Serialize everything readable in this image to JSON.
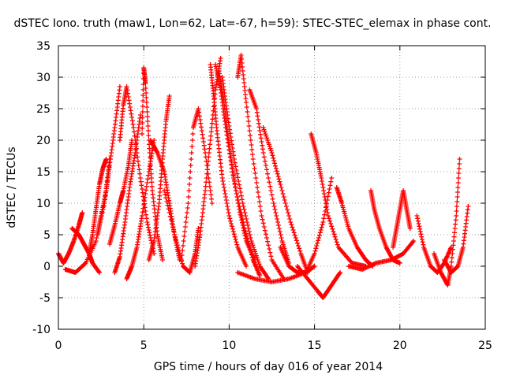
{
  "chart_data": {
    "type": "scatter",
    "title": "dSTEC Iono. truth (maw1, Lon=62, Lat=-67, h=59): STEC-STEC_elemax in phase cont.",
    "xlabel": "GPS time / hours of day 016 of year 2014",
    "ylabel": "dSTEC  / TECUs",
    "xlim": [
      0,
      25
    ],
    "ylim": [
      -10,
      35
    ],
    "xticks": [
      0,
      5,
      10,
      15,
      20,
      25
    ],
    "yticks": [
      -10,
      -5,
      0,
      5,
      10,
      15,
      20,
      25,
      30,
      35
    ],
    "grid": true,
    "marker": "+",
    "color": "#ff0000",
    "series": [
      {
        "x": [
          0.0,
          0.3,
          0.6,
          0.9,
          1.2,
          1.4
        ],
        "y": [
          2.0,
          0.5,
          2.0,
          4.0,
          6.5,
          8.5
        ]
      },
      {
        "x": [
          0.4,
          1.0,
          1.6,
          2.2,
          2.7,
          3.0
        ],
        "y": [
          -0.5,
          -1.0,
          0.5,
          4.0,
          10.0,
          17.0
        ]
      },
      {
        "x": [
          0.8,
          1.2,
          1.5,
          1.8,
          2.0,
          2.4
        ],
        "y": [
          6.0,
          5.0,
          3.5,
          2.0,
          0.5,
          -1.0
        ]
      },
      {
        "x": [
          1.8,
          2.0,
          2.2,
          2.4,
          2.6,
          2.8
        ],
        "y": [
          2.0,
          5.0,
          9.0,
          13.0,
          15.5,
          17.0
        ]
      },
      {
        "x": [
          2.3,
          2.5,
          2.8,
          3.0,
          3.3,
          3.6
        ],
        "y": [
          5.0,
          8.0,
          12.0,
          16.0,
          22.0,
          28.5
        ]
      },
      {
        "x": [
          3.0,
          3.3,
          3.6,
          3.8,
          4.1,
          4.3
        ],
        "y": [
          3.5,
          6.5,
          10.0,
          12.0,
          16.0,
          20.0
        ]
      },
      {
        "x": [
          3.3,
          3.6,
          3.9,
          4.2,
          4.5,
          4.8
        ],
        "y": [
          -1.0,
          1.5,
          7.0,
          13.0,
          18.0,
          24.0
        ]
      },
      {
        "x": [
          3.6,
          3.8,
          4.0,
          4.4,
          4.8,
          5.2,
          5.6
        ],
        "y": [
          20.0,
          25.5,
          28.5,
          22.0,
          14.0,
          7.0,
          2.0
        ]
      },
      {
        "x": [
          4.0,
          4.3,
          4.6,
          4.9,
          5.3,
          5.6
        ],
        "y": [
          -2.0,
          0.0,
          3.0,
          8.0,
          15.0,
          20.0
        ]
      },
      {
        "x": [
          4.9,
          5.0,
          5.1,
          5.3,
          5.5,
          5.8,
          6.1
        ],
        "y": [
          21.0,
          31.5,
          29.0,
          20.0,
          12.0,
          5.0,
          1.0
        ]
      },
      {
        "x": [
          5.3,
          5.6,
          5.9,
          6.1,
          6.3,
          6.5
        ],
        "y": [
          1.0,
          4.0,
          10.0,
          17.0,
          23.0,
          27.0
        ]
      },
      {
        "x": [
          5.4,
          5.8,
          6.2,
          6.5,
          6.8,
          7.1
        ],
        "y": [
          20.0,
          18.0,
          15.0,
          10.0,
          5.0,
          1.0
        ]
      },
      {
        "x": [
          6.2,
          6.8,
          7.3,
          7.7,
          8.0,
          8.2
        ],
        "y": [
          12.0,
          5.0,
          0.0,
          -1.0,
          2.0,
          6.0
        ]
      },
      {
        "x": [
          7.2,
          7.6,
          7.9,
          8.2,
          8.6,
          9.0
        ],
        "y": [
          1.0,
          10.0,
          22.0,
          25.0,
          18.0,
          10.0
        ]
      },
      {
        "x": [
          8.0,
          8.3,
          8.6,
          8.9,
          9.2,
          9.5
        ],
        "y": [
          0.0,
          5.0,
          12.0,
          20.0,
          28.0,
          33.0
        ]
      },
      {
        "x": [
          8.9,
          9.1,
          9.3,
          9.6,
          10.0,
          10.5,
          11.0
        ],
        "y": [
          32.0,
          27.0,
          21.0,
          14.0,
          8.0,
          3.0,
          0.0
        ]
      },
      {
        "x": [
          9.2,
          9.5,
          9.8,
          10.2,
          10.6,
          11.0,
          11.5
        ],
        "y": [
          32.0,
          28.0,
          22.0,
          15.0,
          9.0,
          4.0,
          1.0
        ]
      },
      {
        "x": [
          9.4,
          9.7,
          10.0,
          10.4,
          10.9,
          11.4,
          11.8
        ],
        "y": [
          31.0,
          26.0,
          19.0,
          12.0,
          6.0,
          1.0,
          -1.5
        ]
      },
      {
        "x": [
          9.6,
          9.9,
          10.3,
          10.8,
          11.3,
          11.8,
          12.3
        ],
        "y": [
          30.0,
          24.0,
          17.0,
          10.0,
          4.0,
          0.0,
          -2.0
        ]
      },
      {
        "x": [
          10.5,
          10.7,
          11.0,
          11.4,
          11.9,
          12.5,
          13.2
        ],
        "y": [
          30.0,
          33.5,
          26.0,
          17.0,
          8.0,
          1.0,
          -2.0
        ]
      },
      {
        "x": [
          11.2,
          11.6,
          12.0,
          12.6,
          13.1,
          13.5
        ],
        "y": [
          28.0,
          25.0,
          18.0,
          10.0,
          4.0,
          0.5
        ]
      },
      {
        "x": [
          12.0,
          12.5,
          13.0,
          13.6,
          14.2,
          14.6
        ],
        "y": [
          22.0,
          18.0,
          13.0,
          7.0,
          2.0,
          -1.0
        ]
      },
      {
        "x": [
          10.5,
          11.5,
          12.5,
          13.5,
          14.5,
          15.0
        ],
        "y": [
          -1.0,
          -2.0,
          -2.5,
          -2.0,
          -1.0,
          0.0
        ]
      },
      {
        "x": [
          13.0,
          13.5,
          14.0,
          14.5,
          15.0,
          15.5,
          16.0
        ],
        "y": [
          3.0,
          0.0,
          -1.0,
          -1.0,
          2.0,
          7.0,
          14.0
        ]
      },
      {
        "x": [
          14.8,
          15.1,
          15.4,
          15.8,
          16.4,
          17.2,
          18.0
        ],
        "y": [
          21.0,
          18.0,
          14.0,
          8.0,
          3.0,
          0.5,
          0.0
        ]
      },
      {
        "x": [
          14.0,
          14.6,
          15.2,
          15.5,
          16.0,
          16.5
        ],
        "y": [
          0.0,
          -2.0,
          -4.0,
          -5.0,
          -3.0,
          -1.0
        ]
      },
      {
        "x": [
          16.3,
          16.6,
          17.0,
          17.5,
          18.0,
          18.4
        ],
        "y": [
          12.5,
          10.0,
          6.0,
          3.0,
          1.0,
          0.0
        ]
      },
      {
        "x": [
          18.3,
          18.5,
          18.8,
          19.2,
          19.6,
          20.0
        ],
        "y": [
          12.0,
          9.0,
          6.0,
          3.0,
          1.0,
          0.5
        ]
      },
      {
        "x": [
          17.0,
          17.8,
          18.6,
          19.5,
          20.2,
          20.8
        ],
        "y": [
          0.0,
          -0.5,
          0.5,
          1.0,
          2.0,
          4.0
        ]
      },
      {
        "x": [
          19.6,
          19.8,
          20.0,
          20.2,
          20.4,
          20.6
        ],
        "y": [
          3.0,
          6.0,
          9.0,
          12.0,
          9.0,
          6.0
        ]
      },
      {
        "x": [
          21.0,
          21.4,
          21.8,
          22.2,
          22.6,
          23.0
        ],
        "y": [
          8.0,
          3.0,
          0.0,
          -1.0,
          0.5,
          3.0
        ]
      },
      {
        "x": [
          22.0,
          22.4,
          22.8,
          23.0,
          23.3,
          23.5
        ],
        "y": [
          2.0,
          -1.0,
          -3.0,
          0.0,
          8.0,
          17.0
        ]
      },
      {
        "x": [
          22.6,
          23.0,
          23.4,
          23.7,
          24.0
        ],
        "y": [
          1.0,
          -1.0,
          0.0,
          3.0,
          9.5
        ]
      }
    ]
  }
}
